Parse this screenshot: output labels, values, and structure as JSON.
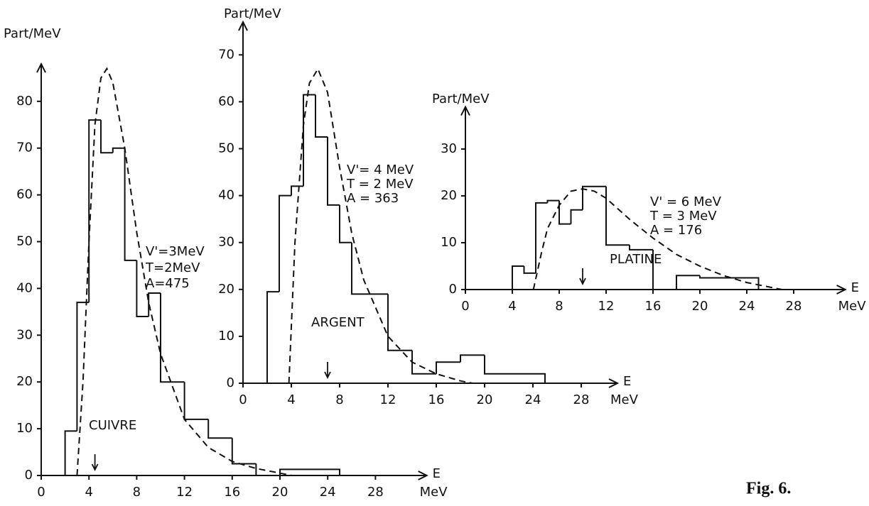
{
  "caption": "Fig. 6.",
  "chart_data": [
    {
      "type": "histogram",
      "color": "#111111",
      "ylabel": "Part/MeV",
      "xlabel": "E",
      "xunit": "MeV",
      "annotations": [
        "V'=3MeV",
        "T=2MeV",
        "A=475",
        "CUIVRE"
      ],
      "bins": [
        2,
        3,
        4,
        5,
        6,
        7,
        8,
        9,
        10,
        12,
        14,
        16,
        18,
        20,
        25
      ],
      "counts": [
        9.5,
        37,
        76,
        69,
        70,
        46,
        34,
        39,
        20,
        12,
        8,
        2.5,
        0,
        1.3
      ],
      "fit": {
        "x": [
          3,
          3.5,
          4,
          4.5,
          5,
          5.5,
          6,
          7,
          8,
          9,
          10,
          12,
          14,
          16,
          18,
          20,
          21
        ],
        "y": [
          0,
          20,
          50,
          75,
          85,
          87,
          84,
          70,
          52,
          37,
          26,
          12,
          6,
          3,
          1.5,
          0.5,
          0
        ]
      },
      "arrow": 4.5,
      "xlim": [
        0,
        32.3
      ],
      "ylim": [
        0,
        88
      ],
      "xticks": [
        0,
        4,
        8,
        12,
        16,
        20,
        24,
        28
      ],
      "yticks": [
        0,
        10,
        20,
        30,
        40,
        50,
        60,
        70,
        80
      ]
    },
    {
      "type": "histogram",
      "color": "#111111",
      "ylabel": "Part/MeV",
      "xlabel": "E",
      "xunit": "MeV",
      "annotations": [
        "V'= 4 MeV",
        "T = 2 MeV",
        "A = 363",
        "ARGENT"
      ],
      "bins": [
        2,
        3,
        4,
        5,
        6,
        7,
        8,
        9,
        10,
        12,
        14,
        16,
        18,
        20,
        25
      ],
      "counts": [
        19.5,
        40,
        42,
        61.5,
        52.5,
        38,
        30,
        19,
        19,
        7,
        2,
        4.5,
        6,
        2
      ],
      "fit": {
        "x": [
          3.8,
          4.3,
          5,
          5.5,
          6.2,
          7,
          8,
          9,
          10,
          12,
          14,
          16,
          18,
          19
        ],
        "y": [
          0,
          30,
          55,
          64,
          67,
          62,
          46,
          32,
          22,
          10,
          4.5,
          2,
          0.5,
          0
        ]
      },
      "arrow": 7,
      "xlim": [
        0,
        31
      ],
      "ylim": [
        0,
        77
      ],
      "xticks": [
        0,
        4,
        8,
        12,
        16,
        20,
        24,
        28
      ],
      "yticks": [
        0,
        10,
        20,
        30,
        40,
        50,
        60,
        70
      ]
    },
    {
      "type": "histogram",
      "color": "#111111",
      "ylabel": "Part/MeV",
      "xlabel": "E",
      "xunit": "MeV",
      "annotations": [
        "V' = 6 MeV",
        "T = 3 MeV",
        "A = 176",
        "PLATINE"
      ],
      "bins": [
        4,
        5,
        6,
        7,
        8,
        9,
        10,
        12,
        14,
        16,
        18,
        20,
        25
      ],
      "counts": [
        5,
        3.5,
        18.5,
        19,
        14,
        17,
        22,
        9.5,
        8.5,
        0,
        3,
        2.5
      ],
      "fit": {
        "x": [
          5.8,
          6.5,
          7,
          8,
          9,
          10,
          11,
          12,
          14,
          16,
          18,
          20,
          22,
          24,
          27
        ],
        "y": [
          0,
          8,
          13,
          18,
          21,
          21.5,
          21,
          19.5,
          15,
          11,
          7.5,
          5,
          3,
          1.5,
          0
        ]
      },
      "arrow": 10,
      "xlim": [
        0,
        32.4
      ],
      "ylim": [
        0,
        39
      ],
      "xticks": [
        0,
        4,
        8,
        12,
        16,
        20,
        24,
        28
      ],
      "yticks": [
        0,
        10,
        20,
        30
      ]
    }
  ]
}
